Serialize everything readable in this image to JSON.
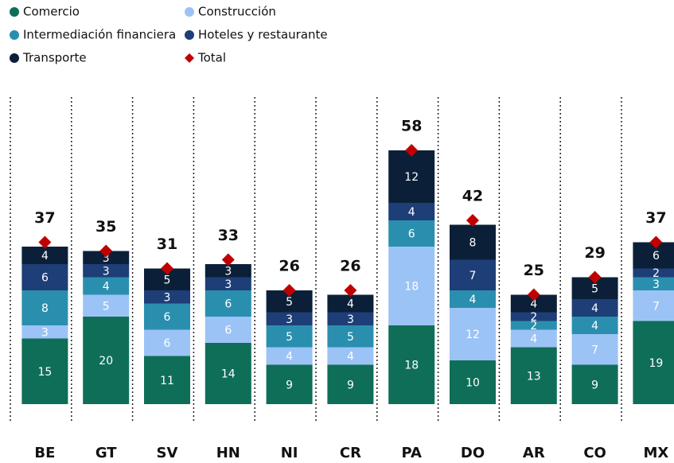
{
  "chart_data": {
    "type": "stacked_bar",
    "categories": [
      "BE",
      "GT",
      "SV",
      "HN",
      "NI",
      "CR",
      "PA",
      "DO",
      "AR",
      "CO",
      "MX"
    ],
    "series": [
      {
        "name": "Comercio",
        "color": "#0f6e57",
        "values": [
          15,
          20,
          11,
          14,
          9,
          9,
          18,
          10,
          13,
          9,
          19
        ]
      },
      {
        "name": "Construcción",
        "color": "#9cc3f5",
        "values": [
          3,
          5,
          6,
          6,
          4,
          4,
          18,
          12,
          4,
          7,
          7
        ]
      },
      {
        "name": "Intermediación financiera",
        "color": "#2a8fae",
        "values": [
          8,
          4,
          6,
          6,
          5,
          5,
          6,
          4,
          2,
          4,
          3
        ]
      },
      {
        "name": "Hoteles y restaurante",
        "color": "#1e3e78",
        "values": [
          6,
          3,
          3,
          3,
          3,
          3,
          4,
          7,
          2,
          4,
          2
        ]
      },
      {
        "name": "Transporte",
        "color": "#0b2038",
        "values": [
          4,
          3,
          5,
          3,
          5,
          4,
          12,
          8,
          4,
          5,
          6
        ]
      }
    ],
    "total": {
      "name": "Total",
      "color": "#c00000",
      "values": [
        37,
        35,
        31,
        33,
        26,
        26,
        58,
        42,
        25,
        29,
        37
      ]
    }
  }
}
